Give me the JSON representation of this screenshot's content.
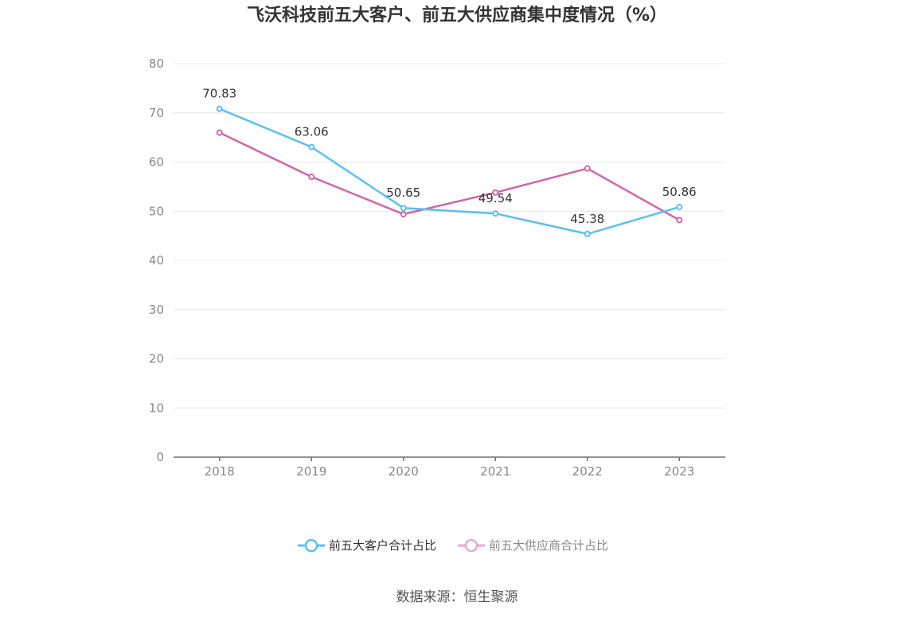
{
  "title": "飞沃科技前五大客户、前五大供应商集中度情况（%）",
  "source": "数据来源：恒生聚源",
  "colors": {
    "customers": "#5bc0f0",
    "suppliers": "#d166a8",
    "suppliers_legend": "#e8a9d0"
  },
  "chart_data": {
    "type": "line",
    "title": "飞沃科技前五大客户、前五大供应商集中度情况（%）",
    "xlabel": "",
    "ylabel": "",
    "categories": [
      "2018",
      "2019",
      "2020",
      "2021",
      "2022",
      "2023"
    ],
    "ylim": [
      0,
      80
    ],
    "yticks": [
      0,
      10,
      20,
      30,
      40,
      50,
      60,
      70,
      80
    ],
    "grid": true,
    "legend_position": "bottom",
    "series": [
      {
        "name": "前五大客户合计占比",
        "values": [
          70.83,
          63.06,
          50.65,
          49.54,
          45.38,
          50.86
        ],
        "labels": [
          "70.83",
          "63.06",
          "50.65",
          "49.54",
          "45.38",
          "50.86"
        ]
      },
      {
        "name": "前五大供应商合计占比",
        "values": [
          66.0,
          57.0,
          49.4,
          53.8,
          58.7,
          48.2
        ]
      }
    ]
  }
}
